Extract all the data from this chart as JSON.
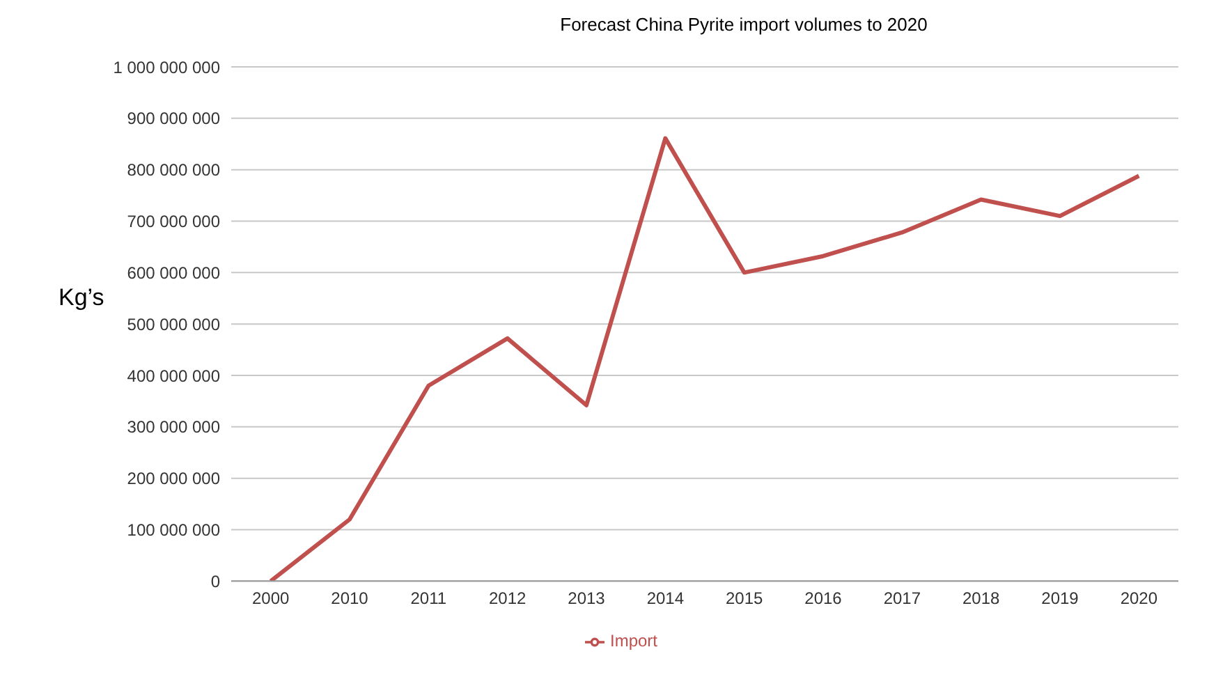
{
  "chart_data": {
    "type": "line",
    "title": "Forecast China Pyrite import volumes to 2020",
    "ylabel": "Kg’s",
    "categories": [
      "2000",
      "2010",
      "2011",
      "2012",
      "2013",
      "2014",
      "2015",
      "2016",
      "2017",
      "2018",
      "2019",
      "2020"
    ],
    "series": [
      {
        "name": "Import",
        "color": "#c0504d",
        "values": [
          0,
          120000000,
          380000000,
          472000000,
          342000000,
          861000000,
          600000000,
          632000000,
          678000000,
          742000000,
          710000000,
          788000000
        ]
      }
    ],
    "ylim": [
      0,
      1000000000
    ],
    "yticks": [
      {
        "value": 0,
        "label": "0"
      },
      {
        "value": 100000000,
        "label": "100 000 000"
      },
      {
        "value": 200000000,
        "label": "200 000 000"
      },
      {
        "value": 300000000,
        "label": "300 000 000"
      },
      {
        "value": 400000000,
        "label": "400 000 000"
      },
      {
        "value": 500000000,
        "label": "500 000 000"
      },
      {
        "value": 600000000,
        "label": "600 000 000"
      },
      {
        "value": 700000000,
        "label": "700 000 000"
      },
      {
        "value": 800000000,
        "label": "800 000 000"
      },
      {
        "value": 900000000,
        "label": "900 000 000"
      },
      {
        "value": 1000000000,
        "label": "1 000 000 000"
      }
    ],
    "grid": "y",
    "legend": "bottom",
    "marker": "none",
    "line_style": "solid"
  }
}
